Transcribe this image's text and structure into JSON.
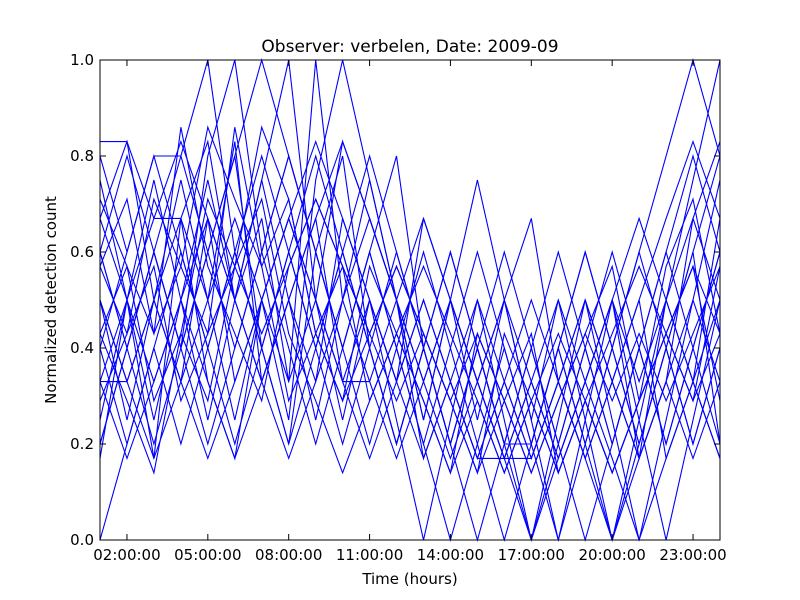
{
  "chart_data": {
    "type": "line",
    "title": "Observer: verbelen, Date: 2009-09",
    "xlabel": "Time (hours)",
    "ylabel": "Normalized detection count",
    "xlim": [
      1.0,
      24.0
    ],
    "ylim": [
      0.0,
      1.0
    ],
    "xticks": [
      2,
      5,
      8,
      11,
      14,
      17,
      20,
      23
    ],
    "xtick_labels": [
      "02:00:00",
      "05:00:00",
      "08:00:00",
      "11:00:00",
      "14:00:00",
      "17:00:00",
      "20:00:00",
      "23:00:00"
    ],
    "yticks": [
      0.0,
      0.2,
      0.4,
      0.6,
      0.8,
      1.0
    ],
    "ytick_labels": [
      "0.0",
      "0.2",
      "0.4",
      "0.6",
      "0.8",
      "1.0"
    ],
    "grid": false,
    "line_color": "#0000ff",
    "x": [
      1,
      2,
      3,
      4,
      5,
      6,
      7,
      8,
      9,
      10,
      11,
      12,
      13,
      14,
      15,
      16,
      17,
      18,
      19,
      20,
      21,
      22,
      23,
      24
    ],
    "series": [
      {
        "values": [
          0.83,
          0.83,
          0.67,
          0.67,
          0.5,
          0.83,
          0.33,
          0.5,
          0.67,
          0.33,
          0.33,
          0.5,
          0.17,
          0.33,
          0.17,
          0.17,
          0.33,
          0.17,
          0.33,
          0.5,
          0.17,
          0.33,
          0.67,
          0.5
        ]
      },
      {
        "values": [
          0.4,
          0.6,
          0.8,
          0.8,
          1.0,
          0.6,
          0.4,
          0.2,
          0.6,
          0.8,
          0.4,
          0.2,
          0.4,
          0.2,
          0.0,
          0.2,
          0.2,
          0.0,
          0.2,
          0.4,
          0.2,
          0.4,
          0.6,
          0.8
        ]
      },
      {
        "values": [
          0.33,
          0.5,
          0.17,
          0.67,
          0.83,
          0.5,
          0.67,
          0.33,
          1.0,
          0.5,
          0.33,
          0.17,
          0.33,
          0.5,
          0.33,
          0.17,
          0.17,
          0.33,
          0.5,
          0.33,
          0.17,
          0.5,
          0.33,
          0.67
        ]
      },
      {
        "values": [
          0.57,
          0.43,
          0.71,
          0.57,
          0.43,
          0.86,
          0.57,
          0.71,
          0.43,
          0.29,
          0.57,
          0.43,
          0.29,
          0.14,
          0.43,
          0.29,
          0.14,
          0.29,
          0.43,
          0.57,
          0.29,
          0.43,
          0.57,
          0.43
        ]
      },
      {
        "values": [
          0.25,
          0.5,
          0.75,
          0.5,
          0.25,
          0.5,
          0.75,
          1.0,
          0.5,
          0.25,
          0.5,
          0.25,
          0.0,
          0.25,
          0.5,
          0.25,
          0.0,
          0.25,
          0.5,
          0.25,
          0.0,
          0.25,
          0.5,
          0.75
        ]
      },
      {
        "values": [
          0.6,
          0.4,
          0.2,
          0.4,
          0.6,
          0.8,
          0.4,
          0.6,
          0.4,
          0.6,
          0.4,
          0.2,
          0.4,
          0.6,
          0.4,
          0.2,
          0.2,
          0.4,
          0.2,
          0.4,
          0.6,
          0.4,
          0.2,
          0.4
        ]
      },
      {
        "values": [
          0.71,
          0.57,
          0.43,
          0.86,
          0.57,
          0.43,
          0.29,
          0.57,
          0.71,
          0.57,
          0.43,
          0.29,
          0.43,
          0.29,
          0.14,
          0.43,
          0.29,
          0.14,
          0.29,
          0.14,
          0.29,
          0.43,
          0.29,
          0.57
        ]
      },
      {
        "values": [
          0.5,
          0.33,
          0.5,
          0.67,
          0.33,
          0.17,
          0.5,
          0.67,
          0.83,
          0.67,
          0.5,
          0.33,
          0.67,
          0.5,
          0.33,
          0.5,
          0.33,
          0.17,
          0.33,
          0.17,
          0.0,
          0.17,
          0.33,
          0.17
        ]
      },
      {
        "values": [
          0.2,
          0.4,
          0.6,
          0.4,
          0.8,
          1.0,
          0.6,
          0.4,
          0.2,
          0.4,
          0.6,
          0.4,
          0.2,
          0.0,
          0.2,
          0.4,
          0.2,
          0.4,
          0.2,
          0.0,
          0.2,
          0.4,
          0.6,
          0.2
        ]
      },
      {
        "values": [
          0.43,
          0.29,
          0.14,
          0.43,
          0.71,
          0.57,
          0.86,
          0.71,
          0.43,
          0.57,
          0.29,
          0.43,
          0.57,
          0.43,
          0.29,
          0.14,
          0.29,
          0.43,
          0.29,
          0.14,
          0.29,
          0.57,
          0.71,
          0.43
        ]
      },
      {
        "values": [
          0.67,
          0.83,
          0.5,
          0.33,
          0.5,
          0.67,
          0.5,
          0.33,
          0.5,
          0.83,
          0.67,
          0.5,
          0.33,
          0.17,
          0.33,
          0.5,
          0.67,
          0.33,
          0.17,
          0.33,
          0.5,
          0.67,
          0.83,
          0.67
        ]
      },
      {
        "values": [
          0.0,
          0.2,
          0.4,
          0.2,
          0.4,
          0.6,
          0.8,
          0.6,
          0.4,
          0.6,
          0.4,
          0.6,
          0.4,
          0.2,
          0.4,
          0.2,
          0.0,
          0.2,
          0.0,
          0.2,
          0.4,
          0.2,
          0.4,
          0.6
        ]
      },
      {
        "values": [
          0.5,
          0.25,
          0.5,
          0.75,
          0.5,
          0.25,
          0.5,
          0.25,
          0.75,
          1.0,
          0.75,
          0.5,
          0.25,
          0.5,
          0.25,
          0.5,
          0.25,
          0.0,
          0.25,
          0.5,
          0.25,
          0.0,
          0.25,
          0.5
        ]
      },
      {
        "values": [
          0.33,
          0.33,
          0.5,
          0.33,
          0.67,
          0.33,
          0.5,
          0.67,
          0.5,
          0.33,
          0.17,
          0.33,
          0.17,
          0.33,
          0.5,
          0.33,
          0.17,
          0.33,
          0.17,
          0.33,
          0.17,
          0.33,
          0.5,
          0.33
        ]
      },
      {
        "values": [
          0.6,
          0.8,
          0.6,
          0.4,
          0.2,
          0.4,
          0.6,
          0.8,
          0.6,
          0.4,
          0.6,
          0.8,
          0.4,
          0.2,
          0.4,
          0.6,
          0.4,
          0.2,
          0.4,
          0.6,
          0.4,
          0.6,
          0.4,
          0.2
        ]
      },
      {
        "values": [
          0.29,
          0.43,
          0.57,
          0.29,
          0.43,
          0.57,
          0.71,
          0.43,
          0.29,
          0.14,
          0.29,
          0.43,
          0.29,
          0.14,
          0.29,
          0.14,
          0.29,
          0.14,
          0.29,
          0.43,
          0.57,
          0.43,
          0.29,
          0.43
        ]
      },
      {
        "values": [
          0.17,
          0.5,
          0.33,
          0.5,
          0.67,
          0.5,
          0.33,
          0.17,
          0.33,
          0.67,
          0.5,
          0.33,
          0.5,
          0.33,
          0.17,
          0.33,
          0.5,
          0.33,
          0.5,
          0.33,
          0.5,
          0.17,
          0.33,
          0.5
        ]
      },
      {
        "values": [
          0.75,
          0.5,
          0.25,
          0.5,
          0.75,
          0.5,
          0.75,
          0.5,
          0.25,
          0.5,
          0.75,
          0.5,
          0.25,
          0.5,
          0.75,
          0.5,
          0.25,
          0.5,
          0.25,
          0.0,
          0.25,
          0.5,
          0.75,
          1.0
        ]
      },
      {
        "values": [
          0.4,
          0.2,
          0.4,
          0.6,
          0.4,
          0.2,
          0.4,
          0.6,
          0.8,
          0.6,
          0.8,
          0.6,
          0.4,
          0.6,
          0.4,
          0.2,
          0.4,
          0.2,
          0.4,
          0.2,
          0.4,
          0.2,
          0.4,
          0.6
        ]
      },
      {
        "values": [
          0.57,
          0.71,
          0.43,
          0.57,
          0.86,
          0.71,
          0.57,
          0.29,
          0.43,
          0.29,
          0.43,
          0.57,
          0.43,
          0.29,
          0.14,
          0.29,
          0.14,
          0.29,
          0.43,
          0.29,
          0.43,
          0.29,
          0.43,
          0.57
        ]
      },
      {
        "values": [
          0.33,
          0.17,
          0.33,
          0.5,
          0.33,
          0.17,
          0.33,
          0.5,
          0.67,
          0.83,
          0.67,
          0.5,
          0.67,
          0.5,
          0.33,
          0.17,
          0.0,
          0.17,
          0.33,
          0.5,
          0.33,
          0.5,
          0.33,
          0.17
        ]
      },
      {
        "values": [
          0.8,
          0.6,
          0.8,
          0.6,
          0.4,
          0.6,
          0.4,
          0.2,
          0.4,
          0.2,
          0.4,
          0.2,
          0.4,
          0.2,
          0.4,
          0.2,
          0.4,
          0.6,
          0.4,
          0.2,
          0.4,
          0.6,
          0.8,
          0.6
        ]
      },
      {
        "values": [
          0.43,
          0.57,
          0.29,
          0.43,
          0.29,
          0.57,
          0.43,
          0.57,
          0.71,
          0.57,
          0.43,
          0.57,
          0.43,
          0.29,
          0.43,
          0.29,
          0.43,
          0.14,
          0.29,
          0.14,
          0.29,
          0.43,
          0.57,
          0.29
        ]
      },
      {
        "values": [
          0.67,
          0.5,
          0.67,
          0.83,
          0.67,
          0.5,
          0.33,
          0.5,
          0.33,
          0.5,
          0.67,
          0.5,
          0.33,
          0.5,
          0.33,
          0.17,
          0.33,
          0.5,
          0.33,
          0.5,
          0.67,
          0.5,
          0.67,
          0.83
        ]
      },
      {
        "values": [
          0.5,
          0.33,
          0.17,
          0.33,
          0.17,
          0.33,
          0.5,
          0.67,
          0.5,
          0.33,
          0.5,
          0.33,
          0.5,
          0.33,
          0.17,
          0.33,
          0.17,
          0.33,
          0.17,
          0.0,
          0.17,
          0.33,
          0.17,
          0.33
        ]
      },
      {
        "values": [
          0.2,
          0.4,
          0.6,
          0.8,
          0.6,
          0.4,
          0.6,
          0.8,
          0.6,
          0.4,
          0.2,
          0.4,
          0.6,
          0.4,
          0.6,
          0.4,
          0.2,
          0.4,
          0.6,
          0.4,
          0.2,
          0.4,
          0.2,
          0.4
        ]
      },
      {
        "values": [
          0.6,
          0.4,
          0.6,
          0.4,
          0.6,
          0.8,
          1.0,
          0.8,
          0.6,
          0.4,
          0.6,
          0.4,
          0.2,
          0.4,
          0.2,
          0.0,
          0.2,
          0.4,
          0.6,
          0.4,
          0.6,
          0.8,
          1.0,
          0.8
        ]
      }
    ]
  }
}
